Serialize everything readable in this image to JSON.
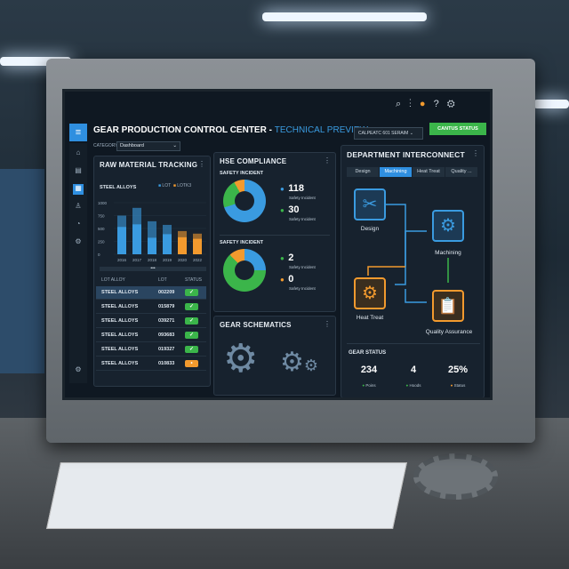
{
  "header": {
    "title": "GEAR PRODUCTION CONTROL CENTER -",
    "subtitle": "TECHNICAL PREVIEW",
    "dropdown": "CALPEATC 601 SERAIM",
    "status_button": "CANTUS STATUS",
    "notification_count": 1
  },
  "filter": {
    "label": "CATEGORY",
    "value": "Dashboard"
  },
  "sidebar": {
    "items": [
      "home-icon",
      "document-icon",
      "grid-icon",
      "people-icon",
      "gauge-icon",
      "gear-icon",
      "settings-icon"
    ]
  },
  "raw_material": {
    "title": "RAW MATERIAL TRACKING",
    "subtitle": "STEEL ALLOYS",
    "legend": [
      "LOT",
      "LOTK3"
    ],
    "table": {
      "headers": [
        "LOT ALLOY",
        "LOT",
        "STATUS"
      ],
      "rows": [
        {
          "alloy": "STEEL ALLOYS",
          "lot": "002209",
          "status": "ok"
        },
        {
          "alloy": "STEEL ALLOYS",
          "lot": "015879",
          "status": "ok"
        },
        {
          "alloy": "STEEL ALLOYS",
          "lot": "039271",
          "status": "ok"
        },
        {
          "alloy": "STEEL ALLOYS",
          "lot": "093683",
          "status": "ok"
        },
        {
          "alloy": "STEEL ALLOYS",
          "lot": "019327",
          "status": "ok"
        },
        {
          "alloy": "STEEL ALLOYS",
          "lot": "010833",
          "status": "warning"
        }
      ]
    }
  },
  "chart_data": {
    "type": "bar",
    "categories": [
      "2016",
      "2017",
      "2018",
      "2019",
      "2020",
      "2022"
    ],
    "series": [
      {
        "name": "LOT",
        "values": [
          750,
          900,
          640,
          570,
          null,
          null
        ]
      },
      {
        "name": "LOTK3",
        "values": [
          null,
          null,
          null,
          null,
          450,
          400
        ]
      }
    ],
    "inner_values": [
      530,
      580,
      320,
      390,
      330,
      300
    ],
    "yticks": [
      0,
      250,
      500,
      750,
      1000
    ],
    "ylim": [
      0,
      1000
    ],
    "colors": {
      "LOT": "#3a9be0",
      "LOTK3": "#f29a2e"
    }
  },
  "hse": {
    "title": "HSE COMPLIANCE",
    "sections": [
      {
        "label": "SAFETY INCIDENT",
        "donut": [
          {
            "value": 70,
            "color": "#3a9be0"
          },
          {
            "value": 22,
            "color": "#3bb54a"
          },
          {
            "value": 8,
            "color": "#f29a2e"
          }
        ],
        "items": [
          {
            "value": "118",
            "label": "Safety Incident",
            "color": "#3a9be0"
          },
          {
            "value": "30",
            "label": "Safety Incident",
            "color": "#3bb54a"
          }
        ]
      },
      {
        "label": "SAFETY INCIDENT",
        "donut": [
          {
            "value": 25,
            "color": "#3a9be0"
          },
          {
            "value": 63,
            "color": "#3bb54a"
          },
          {
            "value": 12,
            "color": "#f29a2e"
          }
        ],
        "items": [
          {
            "value": "2",
            "label": "Safety Incident",
            "color": "#3bb54a"
          },
          {
            "value": "0",
            "label": "Safety Incident",
            "color": "#f29a2e"
          }
        ]
      }
    ]
  },
  "schematics": {
    "title": "GEAR SCHEMATICS"
  },
  "dept": {
    "title": "DEPARTMENT INTERCONNECT",
    "tabs": [
      "Design",
      "Machining",
      "Heat Treat",
      "Quality ..."
    ],
    "active_tab": 1,
    "nodes": [
      "Design",
      "Machining",
      "Heat Treat",
      "Quality Assurance"
    ],
    "status_title": "GEAR STATUS",
    "stats": [
      {
        "value": "234",
        "label": "Poins",
        "color": "#3bb54a"
      },
      {
        "value": "4",
        "label": "Hoods",
        "color": "#3bb54a"
      },
      {
        "value": "25%",
        "label": "Status",
        "color": "#f29a2e"
      }
    ]
  }
}
